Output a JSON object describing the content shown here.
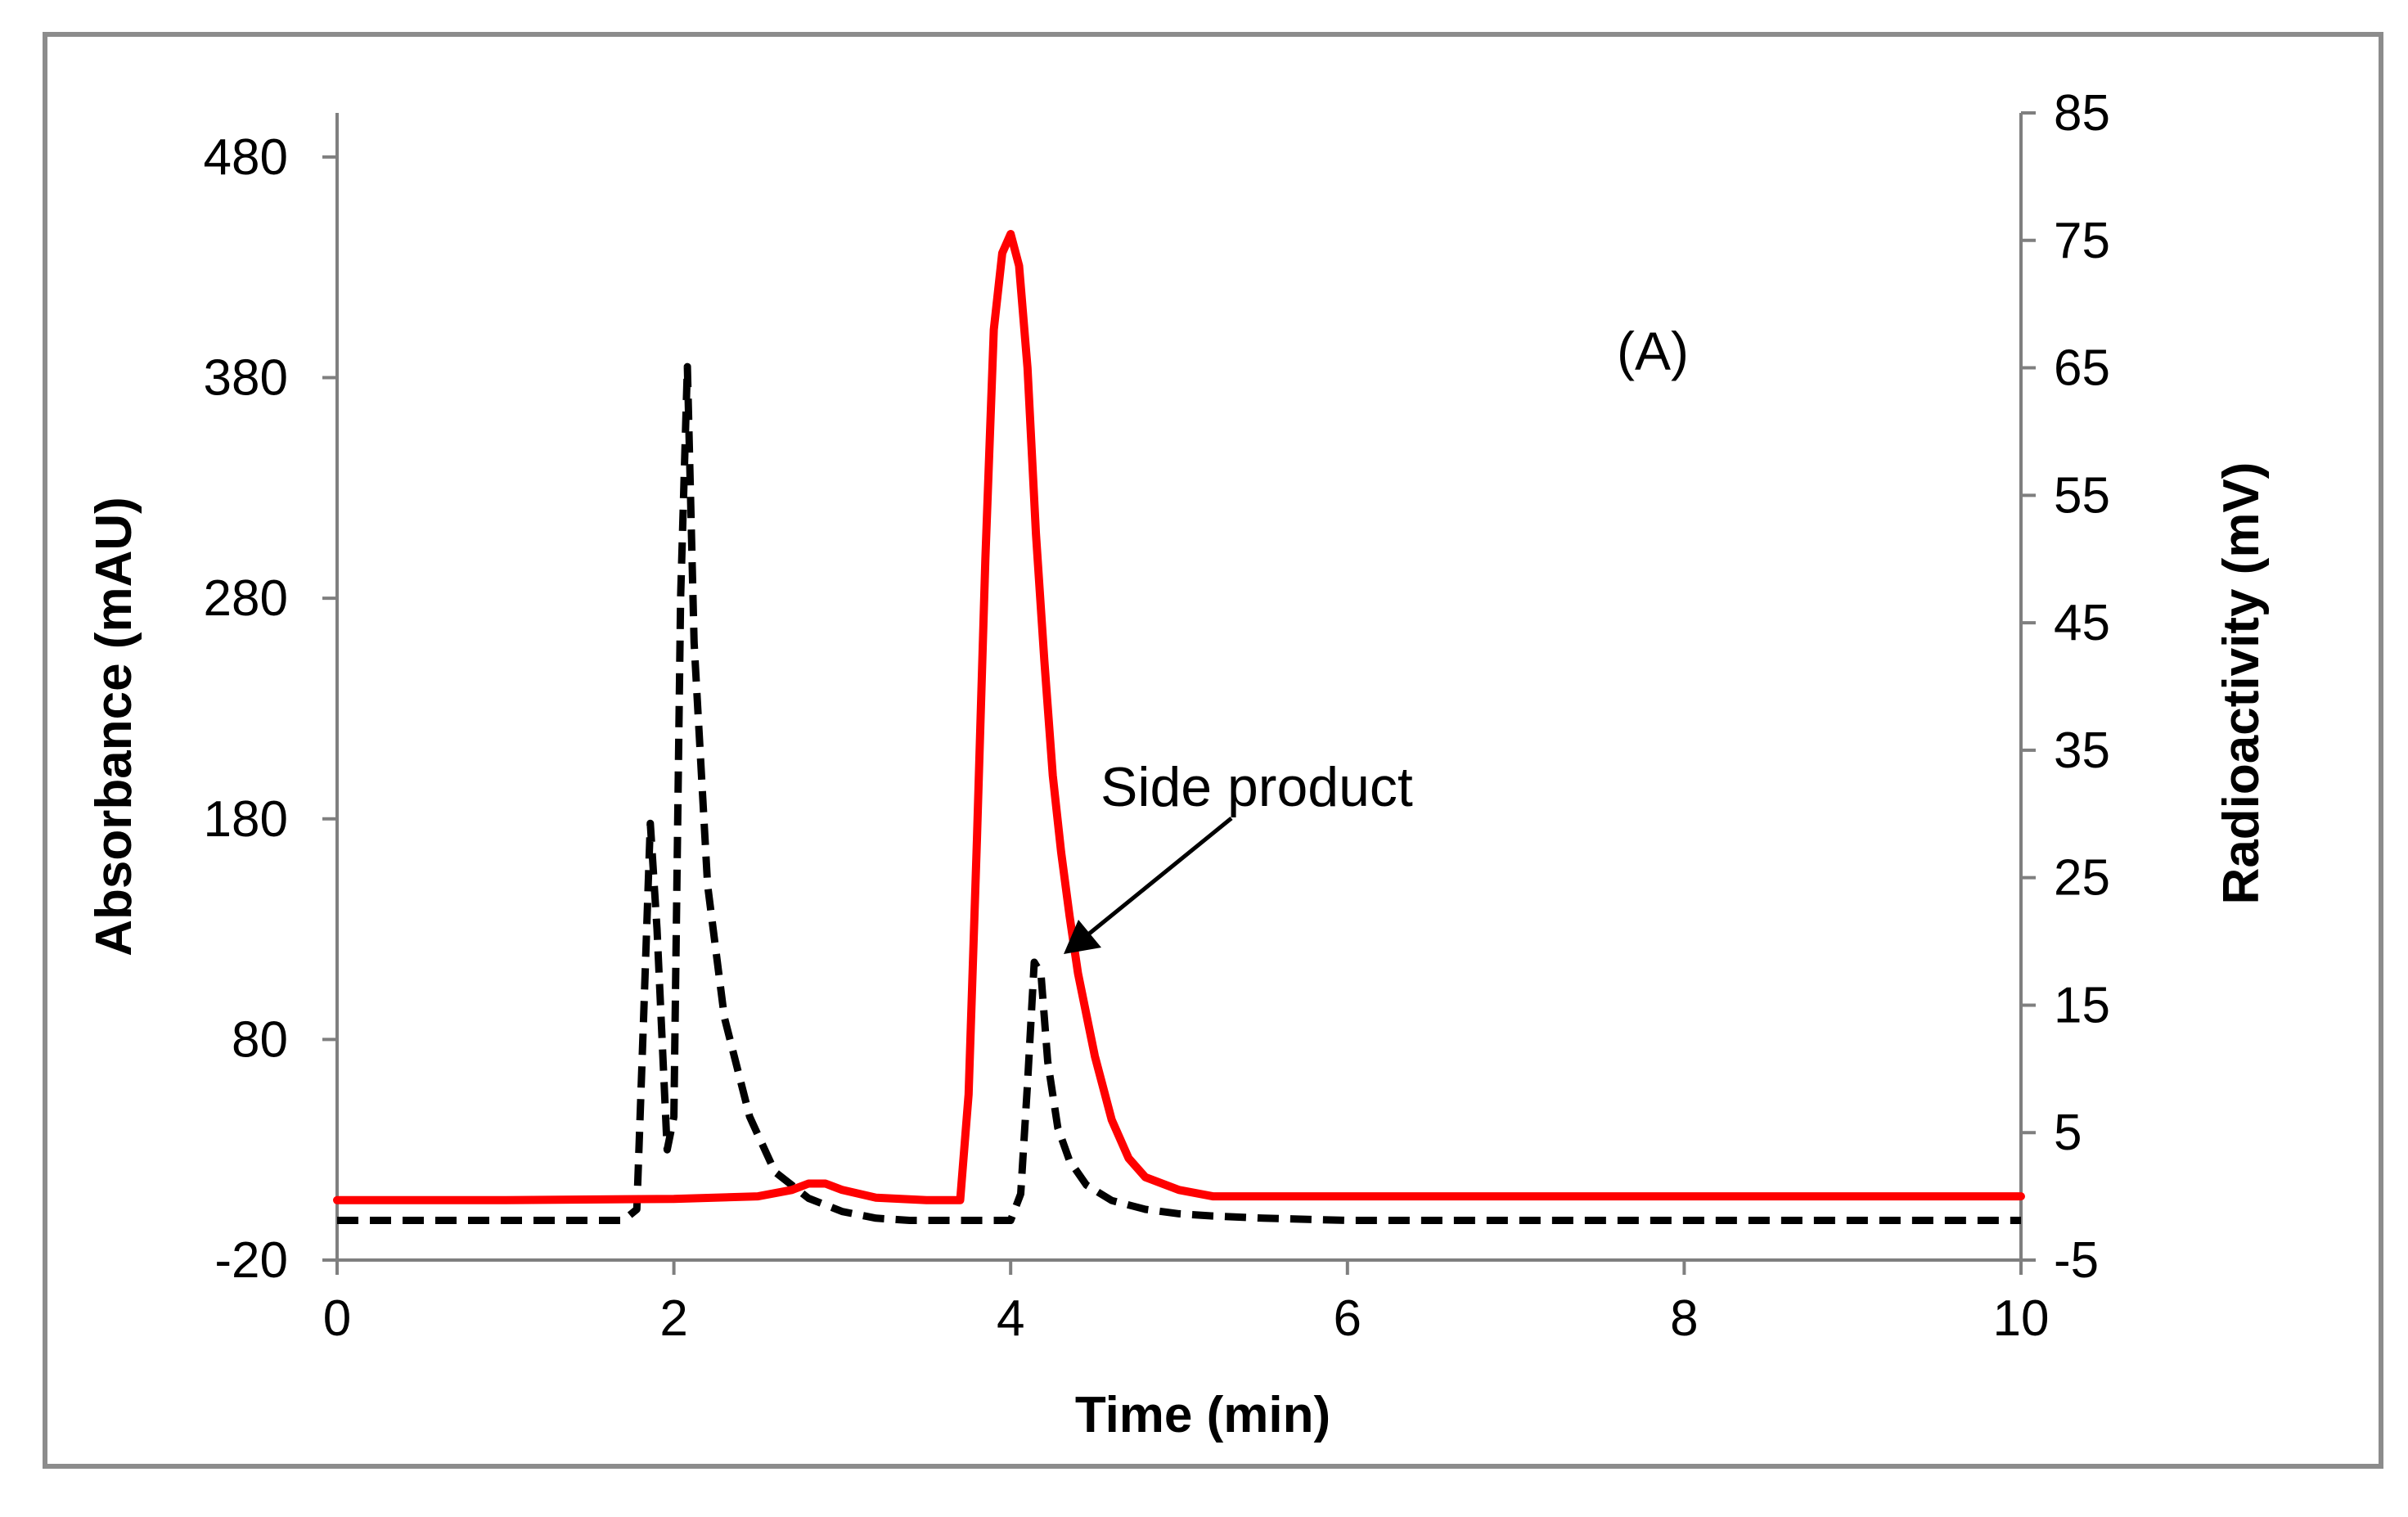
{
  "chart_data": {
    "type": "line",
    "panel_label": "(A)",
    "annotation": "Side product",
    "x_axis": {
      "label": "Time (min)",
      "range": [
        0,
        10
      ],
      "ticks": [
        "0",
        "2",
        "4",
        "6",
        "8",
        "10"
      ]
    },
    "y_left": {
      "label": "Absorbance (mAU)",
      "range": [
        -20,
        500
      ],
      "ticks": [
        "-20",
        "80",
        "180",
        "280",
        "380",
        "480"
      ]
    },
    "y_right": {
      "label": "Radioactivity (mV)",
      "range": [
        -5,
        85
      ],
      "ticks": [
        "-5",
        "5",
        "15",
        "25",
        "35",
        "45",
        "55",
        "65",
        "75",
        "85"
      ]
    },
    "grid": false,
    "series": [
      {
        "name": "Absorbance",
        "axis": "left",
        "style": "dashed",
        "color": "#000000",
        "x": [
          0,
          1.7,
          1.78,
          1.82,
          1.86,
          1.9,
          1.96,
          2.0,
          2.04,
          2.08,
          2.12,
          2.2,
          2.3,
          2.45,
          2.6,
          2.8,
          3.0,
          3.2,
          3.4,
          3.6,
          3.8,
          4.0,
          4.06,
          4.1,
          4.14,
          4.18,
          4.22,
          4.28,
          4.35,
          4.45,
          4.6,
          4.8,
          5.0,
          5.2,
          5.5,
          6.0,
          7.0,
          8.0,
          9.0,
          10.0
        ],
        "values": [
          -2,
          -2,
          3,
          90,
          178,
          130,
          30,
          45,
          280,
          385,
          260,
          150,
          90,
          45,
          20,
          8,
          2,
          -1,
          -2,
          -2,
          -2,
          -2,
          10,
          60,
          115,
          110,
          70,
          40,
          25,
          14,
          7,
          3,
          1,
          0,
          -1,
          -2,
          -2,
          -2,
          -2,
          -2
        ]
      },
      {
        "name": "Radioactivity",
        "axis": "right",
        "style": "solid",
        "color": "#ff0000",
        "x": [
          0,
          1.0,
          2.0,
          2.5,
          2.7,
          2.8,
          2.9,
          3.0,
          3.2,
          3.5,
          3.7,
          3.75,
          3.8,
          3.85,
          3.9,
          3.95,
          4.0,
          4.05,
          4.1,
          4.15,
          4.2,
          4.25,
          4.3,
          4.35,
          4.4,
          4.5,
          4.6,
          4.7,
          4.8,
          5.0,
          5.2,
          5.5,
          6.0,
          7.0,
          8.0,
          9.0,
          10.0
        ],
        "values": [
          -0.3,
          -0.3,
          -0.2,
          0,
          0.5,
          1,
          1,
          0.5,
          -0.1,
          -0.3,
          -0.3,
          8,
          28,
          50,
          68,
          74,
          75.5,
          73,
          65,
          52,
          42,
          33,
          27,
          22,
          17.5,
          11,
          6,
          3,
          1.5,
          0.5,
          0,
          0,
          0,
          0,
          0,
          0,
          0
        ]
      }
    ]
  }
}
